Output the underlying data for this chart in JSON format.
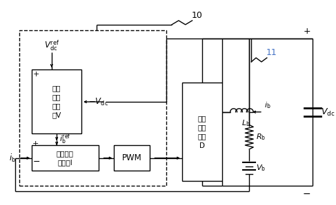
{
  "background": "#ffffff",
  "figsize": [
    4.87,
    2.98
  ],
  "dpi": 100,
  "label_10": "10",
  "label_11": "11",
  "color_11": "#4472c4",
  "text_Vdc_ref": "$V_{\\mathrm{dc}}^{\\mathrm{ref}}$",
  "text_Vdc_fb": "$- V_{\\mathrm{dc}}$",
  "text_ib_ref": "$i_{\\mathrm{b}}^{\\mathrm{ref}}$",
  "text_ib_in": "$i_{\\mathrm{b}}$",
  "text_ib_arrow": "$i_{\\mathrm{b}}$",
  "text_Lb": "$L_{\\mathrm{b}}$",
  "text_Rb": "$R_{\\mathrm{b}}$",
  "text_Vb": "$V_{\\mathrm{b}}$",
  "text_Vdc_out": "$V_{\\mathrm{dc}}$",
  "text_plus_top": "+",
  "text_minus_bot": "-",
  "text_plus_V": "+",
  "text_minus_V": "-",
  "text_plus_I": "+",
  "text_minus_I": "-",
  "box_V_line1": "直流",
  "box_V_line2": "电压",
  "box_V_line3": "控制",
  "box_V_line4": "器V",
  "box_I_line1": "内部电流",
  "box_I_line2": "控制器I",
  "box_PWM": "PWM",
  "box_D_line1": "电池",
  "box_D_line2": "侧变",
  "box_D_line3": "流器",
  "box_D_line4": "D"
}
